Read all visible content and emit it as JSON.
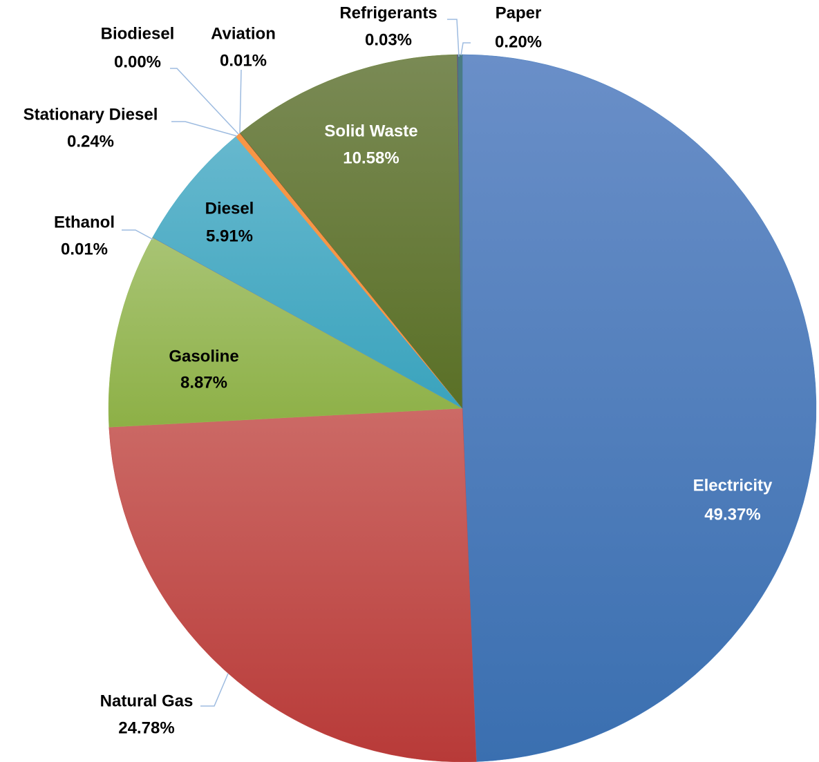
{
  "chart_data": {
    "type": "pie",
    "title": "",
    "start_angle_deg": 0,
    "direction": "clockwise",
    "slices": [
      {
        "name": "Electricity",
        "value": 49.37,
        "label": "49.37%",
        "color": "#4a7fc1",
        "color_light": "#6a8fc8",
        "color_dark": "#3a6fb0",
        "label_color": "#ffffff",
        "label_mode": "inside"
      },
      {
        "name": "Natural Gas",
        "value": 24.78,
        "label": "24.78%",
        "color": "#c44b48",
        "color_light": "#cc6a66",
        "color_dark": "#b83a38",
        "label_color": "#000000",
        "label_mode": "outside"
      },
      {
        "name": "Gasoline",
        "value": 8.87,
        "label": "8.87%",
        "color": "#9bbb59",
        "color_light": "#a8c474",
        "color_dark": "#8db046",
        "label_color": "#000000",
        "label_mode": "inside"
      },
      {
        "name": "Ethanol",
        "value": 0.01,
        "label": "0.01%",
        "color": "#8064a2",
        "color_light": "#8064a2",
        "color_dark": "#8064a2",
        "label_color": "#000000",
        "label_mode": "outside"
      },
      {
        "name": "Diesel",
        "value": 5.91,
        "label": "5.91%",
        "color": "#4bacc6",
        "color_light": "#66b8ce",
        "color_dark": "#3aa3bd",
        "label_color": "#000000",
        "label_mode": "inside"
      },
      {
        "name": "Stationary Diesel",
        "value": 0.24,
        "label": "0.24%",
        "color": "#f79646",
        "color_light": "#f79646",
        "color_dark": "#f79646",
        "label_color": "#000000",
        "label_mode": "outside"
      },
      {
        "name": "Biodiesel",
        "value": 0.0,
        "label": "0.00%",
        "color": "#2c4d75",
        "color_light": "#2c4d75",
        "color_dark": "#2c4d75",
        "label_color": "#000000",
        "label_mode": "outside"
      },
      {
        "name": "Aviation",
        "value": 0.01,
        "label": "0.01%",
        "color": "#772c2a",
        "color_light": "#772c2a",
        "color_dark": "#772c2a",
        "label_color": "#000000",
        "label_mode": "outside"
      },
      {
        "name": "Solid Waste",
        "value": 10.58,
        "label": "10.58%",
        "color": "#6b8236",
        "color_light": "#7a8a55",
        "color_dark": "#5a7026",
        "label_color": "#ffffff",
        "label_mode": "inside"
      },
      {
        "name": "Refrigerants",
        "value": 0.03,
        "label": "0.03%",
        "color": "#5f4b8b",
        "color_light": "#5f4b8b",
        "color_dark": "#5f4b8b",
        "label_color": "#000000",
        "label_mode": "outside"
      },
      {
        "name": "Paper",
        "value": 0.2,
        "label": "0.20%",
        "color": "#4a7c84",
        "color_light": "#4a7c84",
        "color_dark": "#4a7c84",
        "label_color": "#000000",
        "label_mode": "outside"
      }
    ],
    "leader_line_color": "#9dbbe0",
    "legend": "none"
  }
}
